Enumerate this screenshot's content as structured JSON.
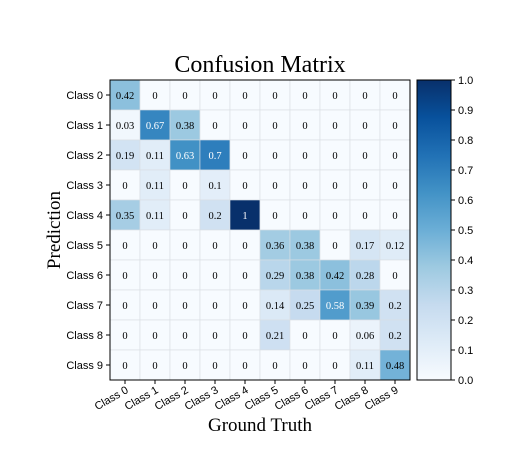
{
  "chart_data": {
    "type": "heatmap",
    "title": "Confusion Matrix",
    "xlabel": "Ground Truth",
    "ylabel": "Prediction",
    "x_categories": [
      "Class 0",
      "Class 1",
      "Class 2",
      "Class 3",
      "Class 4",
      "Class 5",
      "Class 6",
      "Class 7",
      "Class 8",
      "Class 9"
    ],
    "y_categories": [
      "Class 0",
      "Class 1",
      "Class 2",
      "Class 3",
      "Class 4",
      "Class 5",
      "Class 6",
      "Class 7",
      "Class 8",
      "Class 9"
    ],
    "values": [
      [
        0.42,
        0,
        0,
        0,
        0,
        0,
        0,
        0,
        0,
        0
      ],
      [
        0.03,
        0.67,
        0.38,
        0,
        0,
        0,
        0,
        0,
        0,
        0
      ],
      [
        0.19,
        0.11,
        0.63,
        0.7,
        0,
        0,
        0,
        0,
        0,
        0
      ],
      [
        0,
        0.11,
        0,
        0.1,
        0,
        0,
        0,
        0,
        0,
        0
      ],
      [
        0.35,
        0.11,
        0,
        0.2,
        1,
        0,
        0,
        0,
        0,
        0
      ],
      [
        0,
        0,
        0,
        0,
        0,
        0.36,
        0.38,
        0,
        0.17,
        0.12
      ],
      [
        0,
        0,
        0,
        0,
        0,
        0.29,
        0.38,
        0.42,
        0.28,
        0
      ],
      [
        0,
        0,
        0,
        0,
        0,
        0.14,
        0.25,
        0.58,
        0.39,
        0.2
      ],
      [
        0,
        0,
        0,
        0,
        0,
        0.21,
        0,
        0,
        0.06,
        0.2
      ],
      [
        0,
        0,
        0,
        0,
        0,
        0,
        0,
        0,
        0.11,
        0.48
      ]
    ],
    "value_labels": [
      [
        "0.42",
        "0",
        "0",
        "0",
        "0",
        "0",
        "0",
        "0",
        "0",
        "0"
      ],
      [
        "0.03",
        "0.67",
        "0.38",
        "0",
        "0",
        "0",
        "0",
        "0",
        "0",
        "0"
      ],
      [
        "0.19",
        "0.11",
        "0.63",
        "0.7",
        "0",
        "0",
        "0",
        "0",
        "0",
        "0"
      ],
      [
        "0",
        "0.11",
        "0",
        "0.1",
        "0",
        "0",
        "0",
        "0",
        "0",
        "0"
      ],
      [
        "0.35",
        "0.11",
        "0",
        "0.2",
        "1",
        "0",
        "0",
        "0",
        "0",
        "0"
      ],
      [
        "0",
        "0",
        "0",
        "0",
        "0",
        "0.36",
        "0.38",
        "0",
        "0.17",
        "0.12"
      ],
      [
        "0",
        "0",
        "0",
        "0",
        "0",
        "0.29",
        "0.38",
        "0.42",
        "0.28",
        "0"
      ],
      [
        "0",
        "0",
        "0",
        "0",
        "0",
        "0.14",
        "0.25",
        "0.58",
        "0.39",
        "0.2"
      ],
      [
        "0",
        "0",
        "0",
        "0",
        "0",
        "0.21",
        "0",
        "0",
        "0.06",
        "0.2"
      ],
      [
        "0",
        "0",
        "0",
        "0",
        "0",
        "0",
        "0",
        "0",
        "0.11",
        "0.48"
      ]
    ],
    "colorbar": {
      "range": [
        0,
        1
      ],
      "ticks": [
        "0.0",
        "0.1",
        "0.2",
        "0.3",
        "0.4",
        "0.5",
        "0.6",
        "0.7",
        "0.8",
        "0.9",
        "1.0"
      ],
      "colormap": "Blues",
      "stops": [
        "#f7fbff",
        "#deebf7",
        "#c6dbef",
        "#9ecae1",
        "#6baed6",
        "#4292c6",
        "#2171b5",
        "#08519c",
        "#08306b"
      ]
    },
    "grid": true
  }
}
